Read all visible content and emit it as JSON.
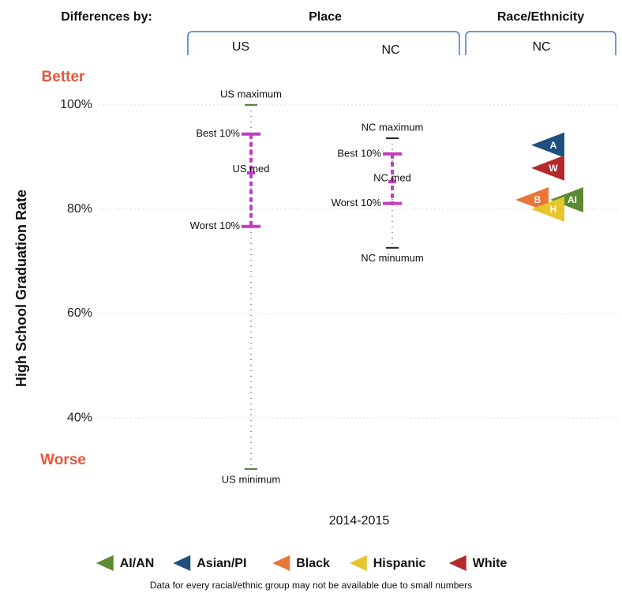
{
  "header": {
    "label": "Differences by:",
    "groups": [
      {
        "name": "Place",
        "columns": [
          "US",
          "NC"
        ]
      },
      {
        "name": "Race/Ethnicity",
        "columns": [
          "NC"
        ]
      }
    ]
  },
  "chart_data": {
    "type": "range",
    "ylabel": "High School Graduation Rate",
    "xlabel": "2014-2015",
    "better": "Better",
    "worse": "Worse",
    "ylim": [
      27,
      103
    ],
    "yticks": [
      {
        "value": 40,
        "label": "40%"
      },
      {
        "value": 60,
        "label": "60%"
      },
      {
        "value": 80,
        "label": "80%"
      },
      {
        "value": 100,
        "label": "100%"
      }
    ],
    "grid": true,
    "ranges": [
      {
        "labels": {
          "max": "US maximum",
          "best": "Best 10%",
          "median": "US med",
          "worst": "Worst 10%",
          "min": "US minimum"
        },
        "max": 100,
        "best": 94.4,
        "median": 87,
        "worst": 76.7,
        "min": 30.2,
        "color": "#c43cc4"
      },
      {
        "labels": {
          "max": "NC maximum",
          "best": "Best 10%",
          "median": "NC med",
          "worst": "Worst 10%",
          "min": "NC minumum"
        },
        "max": 93.6,
        "best": 90.6,
        "median": 85.3,
        "worst": 81.1,
        "min": 72.6,
        "color": "#c43cc4"
      }
    ],
    "series": [
      {
        "name": "AI/AN",
        "abbr": "AI",
        "color": "#5b8a32",
        "values": [
          81.8
        ]
      },
      {
        "name": "Asian/PI",
        "abbr": "A",
        "color": "#1f4f7e",
        "values": [
          92.3
        ]
      },
      {
        "name": "Black",
        "abbr": "B",
        "color": "#e8763a",
        "values": [
          81.8
        ]
      },
      {
        "name": "Hispanic",
        "abbr": "H",
        "color": "#e6c62c",
        "values": [
          80.0
        ]
      },
      {
        "name": "White",
        "abbr": "W",
        "color": "#b5282c",
        "values": [
          87.9
        ]
      }
    ]
  },
  "footnote": "Data for every racial/ethnic group may not be available due to small numbers"
}
